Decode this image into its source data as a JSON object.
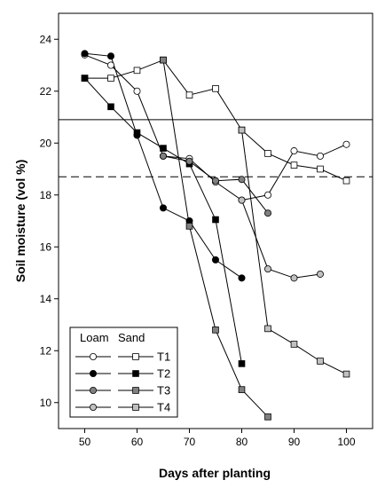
{
  "chart_data": {
    "type": "line",
    "xlabel": "Days after planting",
    "ylabel": "Soil moisture (vol %)",
    "xlim": [
      45,
      105
    ],
    "ylim": [
      9,
      25
    ],
    "x_ticks": [
      50,
      60,
      70,
      80,
      90,
      100
    ],
    "y_ticks": [
      10,
      12,
      14,
      16,
      18,
      20,
      22,
      24
    ],
    "grid": false,
    "reference_lines": [
      {
        "y": 20.9,
        "style": "solid"
      },
      {
        "y": 18.7,
        "style": "dashed"
      }
    ],
    "legend": {
      "placement": "bottom-left",
      "headers": [
        "Loam",
        "Sand"
      ],
      "treatments": [
        "T1",
        "T2",
        "T3",
        "T4"
      ]
    },
    "series": [
      {
        "treatment": "T1",
        "soil": "Loam",
        "marker": "circle",
        "fill": "#ffffff",
        "x": [
          50,
          55,
          60,
          65,
          70,
          75,
          80,
          85,
          90,
          95,
          100
        ],
        "y": [
          23.4,
          23.0,
          22.0,
          19.5,
          19.4,
          18.5,
          17.8,
          18.0,
          19.7,
          19.5,
          19.95
        ]
      },
      {
        "treatment": "T1",
        "soil": "Sand",
        "marker": "square",
        "fill": "#ffffff",
        "x": [
          50,
          55,
          60,
          65,
          70,
          75,
          80,
          85,
          90,
          95,
          100
        ],
        "y": [
          22.5,
          22.5,
          22.8,
          23.2,
          21.85,
          22.1,
          20.5,
          19.6,
          19.15,
          19.0,
          18.55
        ]
      },
      {
        "treatment": "T2",
        "soil": "Loam",
        "marker": "circle",
        "fill": "#000000",
        "x": [
          50,
          55,
          60,
          65,
          70,
          75,
          80
        ],
        "y": [
          23.45,
          23.35,
          20.3,
          17.5,
          17.0,
          15.5,
          14.8
        ]
      },
      {
        "treatment": "T2",
        "soil": "Sand",
        "marker": "square",
        "fill": "#000000",
        "x": [
          50,
          55,
          60,
          65,
          70,
          75,
          80
        ],
        "y": [
          22.5,
          21.4,
          20.4,
          19.8,
          19.2,
          17.05,
          11.5
        ]
      },
      {
        "treatment": "T3",
        "soil": "Loam",
        "marker": "circle",
        "fill": "#808080",
        "x": [
          65,
          70,
          75,
          80,
          85
        ],
        "y": [
          19.5,
          19.3,
          18.55,
          18.6,
          17.3
        ]
      },
      {
        "treatment": "T3",
        "soil": "Sand",
        "marker": "square",
        "fill": "#808080",
        "x": [
          65,
          70,
          75,
          80,
          85
        ],
        "y": [
          23.2,
          16.8,
          12.8,
          10.5,
          9.45
        ]
      },
      {
        "treatment": "T4",
        "soil": "Loam",
        "marker": "circle",
        "fill": "#c0c0c0",
        "x": [
          80,
          85,
          90,
          95
        ],
        "y": [
          17.8,
          15.15,
          14.8,
          14.95
        ]
      },
      {
        "treatment": "T4",
        "soil": "Sand",
        "marker": "square",
        "fill": "#c0c0c0",
        "x": [
          80,
          85,
          90,
          95,
          100
        ],
        "y": [
          20.5,
          12.85,
          12.25,
          11.6,
          11.1
        ]
      }
    ]
  }
}
